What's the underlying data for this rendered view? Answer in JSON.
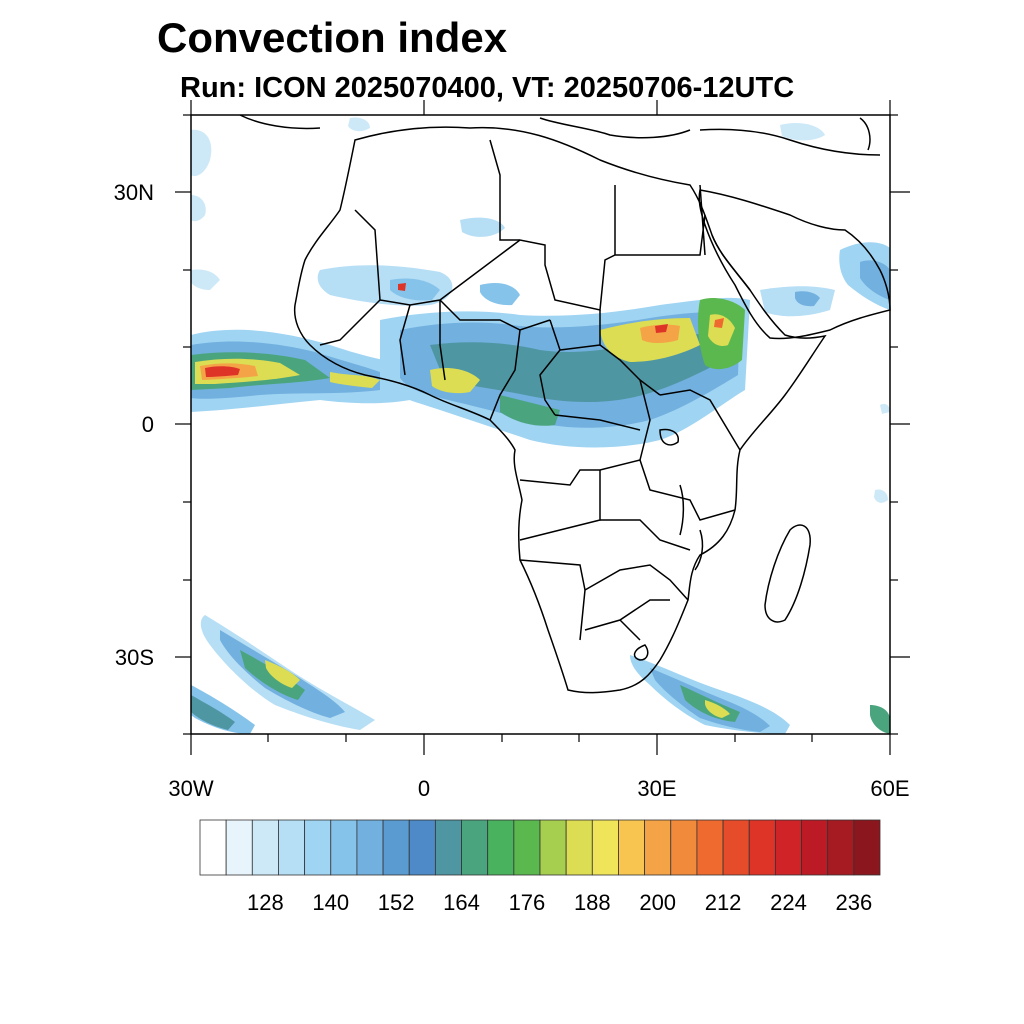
{
  "title": "Convection index",
  "subtitle": "Run: ICON 2025070400,  VT: 20250706-12UTC",
  "map": {
    "lat_labels": [
      "30N",
      "0",
      "30S"
    ],
    "lon_labels": [
      "30W",
      "0",
      "30E",
      "60E"
    ],
    "lat_range": [
      -40,
      40
    ],
    "lon_range": [
      -30,
      60
    ],
    "coastline_color": "#000000"
  },
  "colorbar": {
    "labels": [
      "128",
      "140",
      "152",
      "164",
      "176",
      "188",
      "200",
      "212",
      "224",
      "236"
    ],
    "colors": [
      "#ffffff",
      "#e8f4fb",
      "#cde9f8",
      "#b6def5",
      "#9fd4f3",
      "#86c3ea",
      "#72b0df",
      "#5a9bd2",
      "#4e8ac7",
      "#4f96a3",
      "#4aa57f",
      "#49b25e",
      "#5bb84f",
      "#a7cf4f",
      "#dcdd52",
      "#f0e45a",
      "#f8c650",
      "#f4a447",
      "#f28a3c",
      "#ee6a2f",
      "#e64c2a",
      "#de3428",
      "#cf2328",
      "#bc1b26",
      "#a61a22",
      "#8c161d"
    ]
  }
}
